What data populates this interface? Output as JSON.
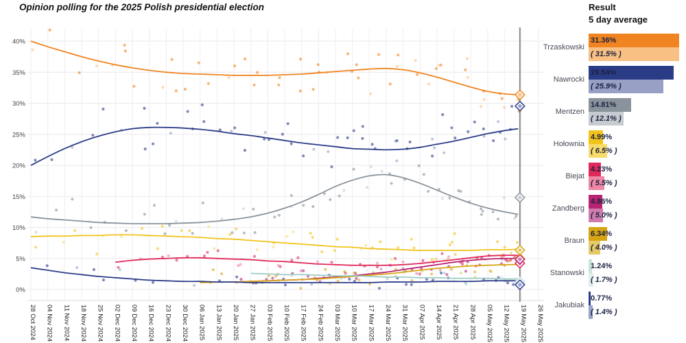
{
  "title": "Opinion polling for the 2025 Polish presidential election",
  "legend_panel": {
    "header_line1": "Result",
    "header_line2": "5 day average"
  },
  "chart_data": {
    "type": "scatter+line",
    "title": "Opinion polling for the 2025 Polish presidential election",
    "grid": true,
    "ylim": [
      0,
      43
    ],
    "y_tick_labels": [
      "0%",
      "5%",
      "10%",
      "15%",
      "20%",
      "25%",
      "30%",
      "35%",
      "40%"
    ],
    "x_tick_labels": [
      "28 Oct 2024",
      "04 Nov 2024",
      "11 Nov 2024",
      "18 Nov 2024",
      "25 Nov 2024",
      "02 Dec 2024",
      "09 Dec 2024",
      "16 Dec 2024",
      "23 Dec 2024",
      "30 Dec 2024",
      "06 Jan 2025",
      "13 Jan 2025",
      "20 Jan 2025",
      "27 Jan 2025",
      "03 Feb 2025",
      "10 Feb 2025",
      "17 Feb 2025",
      "24 Feb 2025",
      "03 Mar 2025",
      "10 Mar 2025",
      "17 Mar 2025",
      "24 Mar 2025",
      "31 Mar 2025",
      "07 Apr 2025",
      "14 Apr 2025",
      "21 Apr 2025",
      "28 Apr 2025",
      "05 May 2025",
      "12 May 2025",
      "19 May 2025",
      "26 May 2025"
    ],
    "election_line_week": 28.9,
    "election_line_color": "#8a8a8a",
    "series": [
      {
        "name": "Trzaskowski",
        "color": "#F08420",
        "color_light": "#F9C083",
        "result": 31.36,
        "result_label": "31.36%",
        "avg": 31.5,
        "avg_label": "( 31.5% )",
        "start_week": 0,
        "trend": [
          40.0,
          39.1,
          38.3,
          37.5,
          36.8,
          36.2,
          35.7,
          35.3,
          35.0,
          34.8,
          34.7,
          34.6,
          34.5,
          34.5,
          34.5,
          34.6,
          34.7,
          34.9,
          35.1,
          35.3,
          35.5,
          35.6,
          35.4,
          34.9,
          34.2,
          33.4,
          32.6,
          31.9,
          31.5,
          31.4
        ],
        "scatter": {
          "sigma": 2.0,
          "d0": 1.0,
          "d1": 3.0
        }
      },
      {
        "name": "Nawrocki",
        "color": "#2B3C87",
        "color_light": "#99A0C6",
        "result": 29.54,
        "result_label": "29.54%",
        "avg": 25.9,
        "avg_label": "( 25.9% )",
        "start_week": 0,
        "trend": [
          20.0,
          21.4,
          22.7,
          23.8,
          24.7,
          25.4,
          25.9,
          26.1,
          26.1,
          26.0,
          25.8,
          25.5,
          25.1,
          24.8,
          24.4,
          24.0,
          23.6,
          23.3,
          23.0,
          22.7,
          22.6,
          22.5,
          22.6,
          22.9,
          23.4,
          23.9,
          24.5,
          25.1,
          25.6,
          25.9
        ],
        "scatter": {
          "sigma": 2.0,
          "d0": 1.0,
          "d1": 3.0
        }
      },
      {
        "name": "Mentzen",
        "color": "#8A939B",
        "color_light": "#C6CBD0",
        "result": 14.81,
        "result_label": "14.81%",
        "avg": 12.1,
        "avg_label": "( 12.1% )",
        "start_week": 0,
        "trend": [
          11.7,
          11.4,
          11.2,
          11.0,
          10.8,
          10.7,
          10.6,
          10.6,
          10.6,
          10.7,
          10.8,
          11.0,
          11.3,
          11.7,
          12.3,
          13.1,
          14.1,
          15.3,
          16.6,
          17.6,
          18.3,
          18.5,
          18.0,
          17.1,
          16.0,
          14.9,
          13.9,
          13.1,
          12.5,
          12.1
        ],
        "scatter": {
          "sigma": 1.7,
          "d0": 0.9,
          "d1": 2.8
        }
      },
      {
        "name": "Hołownia",
        "color": "#F2C31C",
        "color_light": "#F8DC6A",
        "result": 4.99,
        "result_label": "4.99%",
        "avg": 6.5,
        "avg_label": "( 6.5% )",
        "start_week": 0,
        "trend": [
          8.5,
          8.6,
          8.6,
          8.7,
          8.7,
          8.8,
          8.8,
          8.7,
          8.6,
          8.5,
          8.4,
          8.2,
          8.1,
          7.9,
          7.7,
          7.5,
          7.3,
          7.1,
          6.9,
          6.8,
          6.6,
          6.5,
          6.4,
          6.3,
          6.3,
          6.3,
          6.3,
          6.4,
          6.4,
          6.5
        ],
        "scatter": {
          "sigma": 1.3,
          "d0": 0.8,
          "d1": 2.5
        }
      },
      {
        "name": "Biejat",
        "color": "#E0285A",
        "color_light": "#EE86A4",
        "result": 4.23,
        "result_label": "4.23%",
        "avg": 5.5,
        "avg_label": "( 5.5% )",
        "start_week": 5,
        "trend": [
          4.4,
          4.7,
          4.9,
          5.0,
          5.1,
          5.1,
          5.0,
          4.9,
          4.8,
          4.6,
          4.5,
          4.3,
          4.1,
          4.0,
          3.9,
          3.9,
          3.9,
          4.0,
          4.2,
          4.5,
          4.8,
          5.1,
          5.4,
          5.5,
          5.5
        ],
        "scatter": {
          "sigma": 0.9,
          "d0": 0.7,
          "d1": 2.5
        }
      },
      {
        "name": "Zandberg",
        "color": "#B82372",
        "color_light": "#CF7BAD",
        "result": 4.86,
        "result_label": "4.86%",
        "avg": 5.0,
        "avg_label": "( 5.0% )",
        "start_week": 12,
        "trend": [
          1.2,
          1.3,
          1.4,
          1.5,
          1.6,
          1.8,
          2.0,
          2.2,
          2.5,
          2.8,
          3.2,
          3.6,
          4.0,
          4.4,
          4.7,
          4.9,
          5.0,
          5.0
        ],
        "scatter": {
          "sigma": 0.8,
          "d0": 0.6,
          "d1": 2.5
        }
      },
      {
        "name": "Braun",
        "color": "#D7A514",
        "color_light": "#E4C968",
        "result": 6.34,
        "result_label": "6.34%",
        "avg": 4.0,
        "avg_label": "( 4.0% )",
        "start_week": 10,
        "trend": [
          1.1,
          1.2,
          1.2,
          1.3,
          1.4,
          1.5,
          1.6,
          1.7,
          1.9,
          2.1,
          2.3,
          2.5,
          2.8,
          3.1,
          3.4,
          3.6,
          3.8,
          3.9,
          4.0,
          4.0
        ],
        "scatter": {
          "sigma": 0.8,
          "d0": 0.6,
          "d1": 2.5
        }
      },
      {
        "name": "Stanowski",
        "color": "#C9E2DE",
        "color_light": "#DFEEEB",
        "line_color": "#9FCCC5",
        "result": 1.24,
        "result_label": "1.24%",
        "avg": 1.7,
        "avg_label": "( 1.7% )",
        "start_week": 13,
        "trend": [
          2.6,
          2.5,
          2.4,
          2.4,
          2.3,
          2.2,
          2.2,
          2.1,
          2.0,
          2.0,
          1.9,
          1.9,
          1.8,
          1.8,
          1.8,
          1.7,
          1.7
        ],
        "scatter": {
          "sigma": 0.6,
          "d0": 0.4,
          "d1": 1.5
        }
      },
      {
        "name": "Jakubiak",
        "color": "#2C3B88",
        "color_light": "#9AA4CB",
        "result": 0.77,
        "result_label": "0.77%",
        "avg": 1.4,
        "avg_label": "( 1.4% )",
        "start_week": 0,
        "trend": [
          3.5,
          3.1,
          2.7,
          2.4,
          2.1,
          1.9,
          1.7,
          1.5,
          1.4,
          1.3,
          1.3,
          1.2,
          1.2,
          1.1,
          1.1,
          1.1,
          1.1,
          1.1,
          1.1,
          1.1,
          1.1,
          1.2,
          1.2,
          1.2,
          1.3,
          1.3,
          1.3,
          1.4,
          1.4,
          1.4
        ],
        "scatter": {
          "sigma": 0.6,
          "d0": 0.6,
          "d1": 1.5
        }
      }
    ]
  }
}
